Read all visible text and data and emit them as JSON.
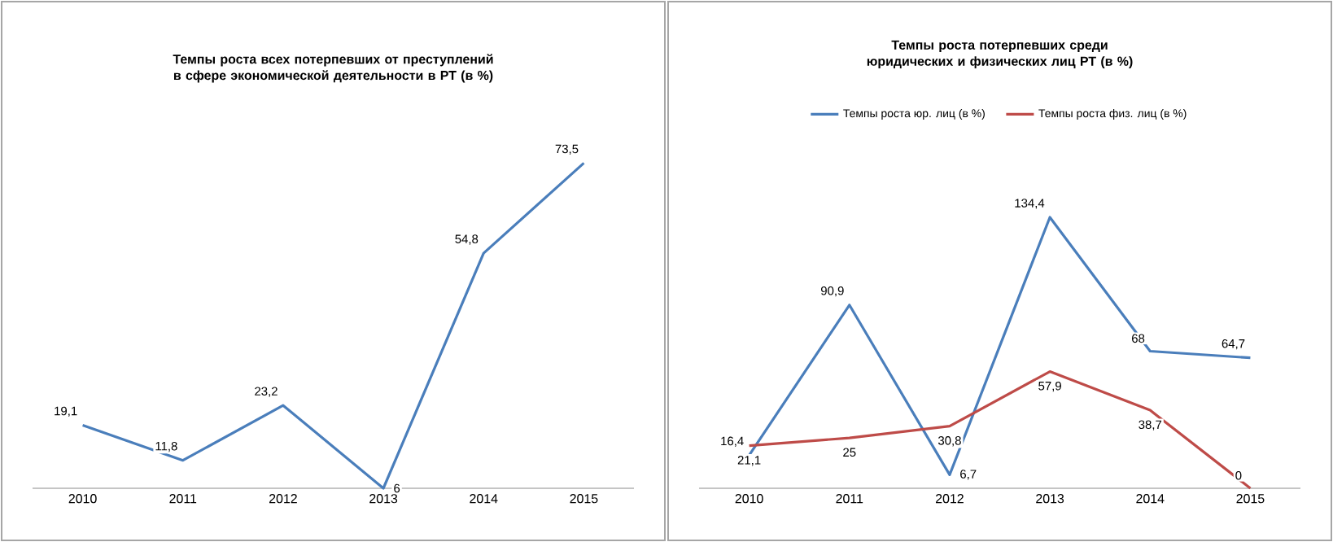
{
  "chart_data": [
    {
      "type": "line",
      "title": "Темпы роста всех потерпевших от преступлений в сфере экономической деятельности в РТ (в %)",
      "categories": [
        "2010",
        "2011",
        "2012",
        "2013",
        "2014",
        "2015"
      ],
      "tick_labels": "x",
      "series": [
        {
          "color": "#4a7ebb",
          "values": [
            19.1,
            11.8,
            23.2,
            6,
            54.8,
            73.5
          ],
          "value_labels": [
            "19,1",
            "11,8",
            "23,2",
            "6",
            "54,8",
            "73,5"
          ]
        }
      ]
    },
    {
      "type": "line",
      "title": "Темпы роста потерпевших среди юридических и физических лиц РТ (в %)",
      "categories": [
        "2010",
        "2011",
        "2012",
        "2013",
        "2014",
        "2015"
      ],
      "tick_labels": "x",
      "legend": "top",
      "series": [
        {
          "name": "Темпы роста юр. лиц (в %)",
          "color": "#4a7ebb",
          "values": [
            16.4,
            90.9,
            6.7,
            134.4,
            68,
            64.7
          ],
          "value_labels": [
            "16,4",
            "90,9",
            "6,7",
            "134,4",
            "68",
            "64,7"
          ]
        },
        {
          "name": "Темпы роста физ. лиц (в %)",
          "color": "#be4b48",
          "values": [
            21.1,
            25,
            30.8,
            57.9,
            38.7,
            0
          ],
          "value_labels": [
            "21,1",
            "25",
            "30,8",
            "57,9",
            "38,7",
            "0"
          ]
        }
      ]
    }
  ]
}
